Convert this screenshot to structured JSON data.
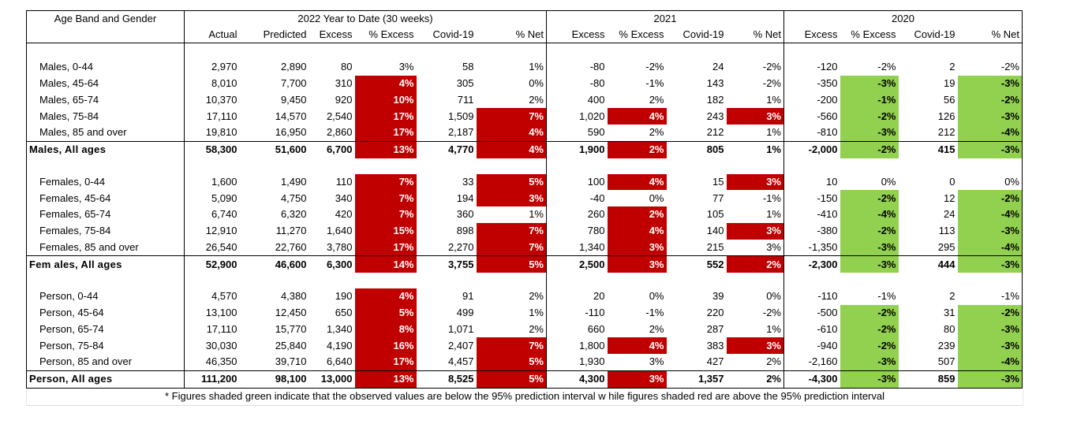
{
  "header": {
    "corner": "Age Band and Gender",
    "groups": [
      "2022 Year to Date (30 weeks)",
      "2021",
      "2020"
    ],
    "columns": [
      "Actual",
      "Predicted",
      "Excess",
      "% Excess",
      "Covid-19",
      "% Net",
      "Excess",
      "% Excess",
      "Covid-19",
      "% Net",
      "Excess",
      "% Excess",
      "Covid-19",
      "% Net"
    ]
  },
  "colors": {
    "above_interval": "#c00000",
    "below_interval": "#92d050"
  },
  "sections": [
    {
      "rows": [
        {
          "label": "Males, 0-44",
          "cells": [
            "2,970",
            "2,890",
            "80",
            "3%",
            "58",
            "1%",
            "-80",
            "-2%",
            "24",
            "-2%",
            "-120",
            "-2%",
            "2",
            "-2%"
          ],
          "shade": [
            "",
            "",
            "",
            "",
            "",
            "",
            "",
            "",
            "",
            "",
            "",
            "",
            "",
            ""
          ]
        },
        {
          "label": "Males, 45-64",
          "cells": [
            "8,010",
            "7,700",
            "310",
            "4%",
            "305",
            "0%",
            "-80",
            "-1%",
            "143",
            "-2%",
            "-350",
            "-3%",
            "19",
            "-3%"
          ],
          "shade": [
            "",
            "",
            "",
            "r",
            "",
            "",
            "",
            "",
            "",
            "",
            "",
            "g",
            "",
            "g"
          ]
        },
        {
          "label": "Males, 65-74",
          "cells": [
            "10,370",
            "9,450",
            "920",
            "10%",
            "711",
            "2%",
            "400",
            "2%",
            "182",
            "1%",
            "-200",
            "-1%",
            "56",
            "-2%"
          ],
          "shade": [
            "",
            "",
            "",
            "r",
            "",
            "",
            "",
            "",
            "",
            "",
            "",
            "g",
            "",
            "g"
          ]
        },
        {
          "label": "Males, 75-84",
          "cells": [
            "17,110",
            "14,570",
            "2,540",
            "17%",
            "1,509",
            "7%",
            "1,020",
            "4%",
            "243",
            "3%",
            "-560",
            "-2%",
            "126",
            "-3%"
          ],
          "shade": [
            "",
            "",
            "",
            "r",
            "",
            "r",
            "",
            "r",
            "",
            "r",
            "",
            "g",
            "",
            "g"
          ]
        },
        {
          "label": "Males, 85 and over",
          "cells": [
            "19,810",
            "16,950",
            "2,860",
            "17%",
            "2,187",
            "4%",
            "590",
            "2%",
            "212",
            "1%",
            "-810",
            "-3%",
            "212",
            "-4%"
          ],
          "shade": [
            "",
            "",
            "",
            "r",
            "",
            "r",
            "",
            "",
            "",
            "",
            "",
            "g",
            "",
            "g"
          ]
        }
      ],
      "total": {
        "label": "Males, All ages",
        "cells": [
          "58,300",
          "51,600",
          "6,700",
          "13%",
          "4,770",
          "4%",
          "1,900",
          "2%",
          "805",
          "1%",
          "-2,000",
          "-2%",
          "415",
          "-3%"
        ],
        "shade": [
          "",
          "",
          "",
          "r",
          "",
          "r",
          "",
          "r",
          "",
          "",
          "",
          "g",
          "",
          "g"
        ]
      }
    },
    {
      "rows": [
        {
          "label": "Females, 0-44",
          "cells": [
            "1,600",
            "1,490",
            "110",
            "7%",
            "33",
            "5%",
            "100",
            "4%",
            "15",
            "3%",
            "10",
            "0%",
            "0",
            "0%"
          ],
          "shade": [
            "",
            "",
            "",
            "r",
            "",
            "r",
            "",
            "r",
            "",
            "r",
            "",
            "",
            "",
            ""
          ]
        },
        {
          "label": "Females, 45-64",
          "cells": [
            "5,090",
            "4,750",
            "340",
            "7%",
            "194",
            "3%",
            "-40",
            "0%",
            "77",
            "-1%",
            "-150",
            "-2%",
            "12",
            "-2%"
          ],
          "shade": [
            "",
            "",
            "",
            "r",
            "",
            "r",
            "",
            "",
            "",
            "",
            "",
            "g",
            "",
            "g"
          ]
        },
        {
          "label": "Females, 65-74",
          "cells": [
            "6,740",
            "6,320",
            "420",
            "7%",
            "360",
            "1%",
            "260",
            "2%",
            "105",
            "1%",
            "-410",
            "-4%",
            "24",
            "-4%"
          ],
          "shade": [
            "",
            "",
            "",
            "r",
            "",
            "",
            "",
            "r",
            "",
            "",
            "",
            "g",
            "",
            "g"
          ]
        },
        {
          "label": "Females, 75-84",
          "cells": [
            "12,910",
            "11,270",
            "1,640",
            "15%",
            "898",
            "7%",
            "780",
            "4%",
            "140",
            "3%",
            "-380",
            "-2%",
            "113",
            "-3%"
          ],
          "shade": [
            "",
            "",
            "",
            "r",
            "",
            "r",
            "",
            "r",
            "",
            "r",
            "",
            "g",
            "",
            "g"
          ]
        },
        {
          "label": "Females, 85 and over",
          "cells": [
            "26,540",
            "22,760",
            "3,780",
            "17%",
            "2,270",
            "7%",
            "1,340",
            "3%",
            "215",
            "3%",
            "-1,350",
            "-3%",
            "295",
            "-4%"
          ],
          "shade": [
            "",
            "",
            "",
            "r",
            "",
            "r",
            "",
            "r",
            "",
            "",
            "",
            "g",
            "",
            "g"
          ]
        }
      ],
      "total": {
        "label": "Fem ales, All ages",
        "cells": [
          "52,900",
          "46,600",
          "6,300",
          "14%",
          "3,755",
          "5%",
          "2,500",
          "3%",
          "552",
          "2%",
          "-2,300",
          "-3%",
          "444",
          "-3%"
        ],
        "shade": [
          "",
          "",
          "",
          "r",
          "",
          "r",
          "",
          "r",
          "",
          "r",
          "",
          "g",
          "",
          "g"
        ]
      }
    },
    {
      "rows": [
        {
          "label": "Person, 0-44",
          "cells": [
            "4,570",
            "4,380",
            "190",
            "4%",
            "91",
            "2%",
            "20",
            "0%",
            "39",
            "0%",
            "-110",
            "-1%",
            "2",
            "-1%"
          ],
          "shade": [
            "",
            "",
            "",
            "r",
            "",
            "",
            "",
            "",
            "",
            "",
            "",
            "",
            "",
            ""
          ]
        },
        {
          "label": "Person, 45-64",
          "cells": [
            "13,100",
            "12,450",
            "650",
            "5%",
            "499",
            "1%",
            "-110",
            "-1%",
            "220",
            "-2%",
            "-500",
            "-2%",
            "31",
            "-2%"
          ],
          "shade": [
            "",
            "",
            "",
            "r",
            "",
            "",
            "",
            "",
            "",
            "",
            "",
            "g",
            "",
            "g"
          ]
        },
        {
          "label": "Person, 65-74",
          "cells": [
            "17,110",
            "15,770",
            "1,340",
            "8%",
            "1,071",
            "2%",
            "660",
            "2%",
            "287",
            "1%",
            "-610",
            "-2%",
            "80",
            "-3%"
          ],
          "shade": [
            "",
            "",
            "",
            "r",
            "",
            "",
            "",
            "",
            "",
            "",
            "",
            "g",
            "",
            "g"
          ]
        },
        {
          "label": "Person, 75-84",
          "cells": [
            "30,030",
            "25,840",
            "4,190",
            "16%",
            "2,407",
            "7%",
            "1,800",
            "4%",
            "383",
            "3%",
            "-940",
            "-2%",
            "239",
            "-3%"
          ],
          "shade": [
            "",
            "",
            "",
            "r",
            "",
            "r",
            "",
            "r",
            "",
            "r",
            "",
            "g",
            "",
            "g"
          ]
        },
        {
          "label": "Person, 85 and over",
          "cells": [
            "46,350",
            "39,710",
            "6,640",
            "17%",
            "4,457",
            "5%",
            "1,930",
            "3%",
            "427",
            "2%",
            "-2,160",
            "-3%",
            "507",
            "-4%"
          ],
          "shade": [
            "",
            "",
            "",
            "r",
            "",
            "r",
            "",
            "",
            "",
            "",
            "",
            "g",
            "",
            "g"
          ]
        }
      ],
      "total": {
        "label": "Person, All ages",
        "cells": [
          "111,200",
          "98,100",
          "13,000",
          "13%",
          "8,525",
          "5%",
          "4,300",
          "3%",
          "1,357",
          "2%",
          "-4,300",
          "-3%",
          "859",
          "-3%"
        ],
        "shade": [
          "",
          "",
          "",
          "r",
          "",
          "r",
          "",
          "r",
          "",
          "",
          "",
          "g",
          "",
          "g"
        ]
      }
    }
  ],
  "footnote": "* Figures shaded green indicate that the observed values are below  the 95% prediction interval w hile figures shaded red are above the 95% prediction interval"
}
